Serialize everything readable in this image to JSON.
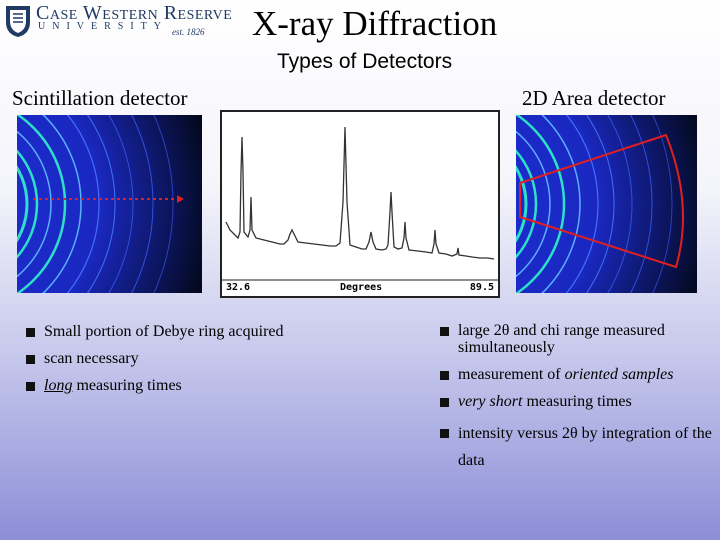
{
  "logo": {
    "name": "Case Western Reserve",
    "university": "UNIVERSITY",
    "est": "est. 1826"
  },
  "title": "X-ray Diffraction",
  "subtitle": "Types of Detectors",
  "left": {
    "heading": "Scintillation detector",
    "bullets": [
      [
        "Small portion of Debye ring acquired"
      ],
      [
        "scan necessary"
      ],
      [
        "long",
        " measuring times"
      ]
    ]
  },
  "right": {
    "heading": "2D Area detector",
    "bullets": [
      [
        "large 2θ and chi range measured simultaneously"
      ],
      [
        "measurement of ",
        "oriented samples"
      ],
      [
        "very short",
        " measuring times"
      ],
      [
        "intensity versus 2θ by integration of the data"
      ]
    ]
  },
  "diffractogram": {
    "x_start": "32.6",
    "x_end": "89.5",
    "x_label": "Degrees"
  },
  "colors": {
    "ring": "#2ee0c8",
    "background_blue": "#1d2fd6",
    "scan_arrow": "#e02020",
    "sector": "#e02020"
  }
}
